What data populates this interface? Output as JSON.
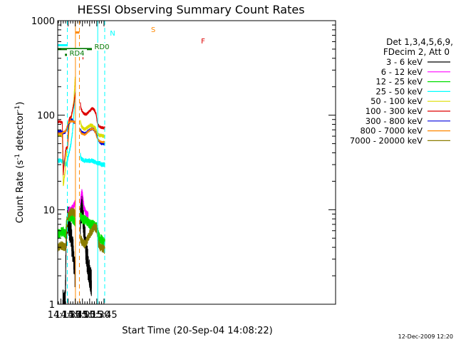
{
  "chart_data": {
    "type": "line",
    "title": "HESSI Observing Summary Count Rates",
    "xlabel": "Start Time (20-Sep-04 14:08:22)",
    "ylabel_main": "Count Rate (s",
    "ylabel_sup1": "-1",
    "ylabel_mid": " detector",
    "ylabel_sup2": "-1",
    "ylabel_end": ")",
    "y_scale": "log",
    "ylim": [
      1,
      1000
    ],
    "xlim_minutes": [
      848.4,
      1428.4
    ],
    "x_ticks": [
      {
        "label": "14:15",
        "min": 855
      },
      {
        "label": "14:30",
        "min": 870
      },
      {
        "label": "14:45",
        "min": 885
      },
      {
        "label": "15:00",
        "min": 900
      },
      {
        "label": "15:15",
        "min": 915
      },
      {
        "label": "15:30",
        "min": 930
      },
      {
        "label": "15:45",
        "min": 945
      }
    ],
    "y_ticks": [
      {
        "label": "1",
        "v": 1
      },
      {
        "label": "10",
        "v": 10
      },
      {
        "label": "100",
        "v": 100
      },
      {
        "label": "1000",
        "v": 1000
      }
    ],
    "legend_header": [
      "Det 1,3,4,5,6,9,",
      "FDecim 2, Att 0"
    ],
    "legend": [
      {
        "label": "3 - 6 keV",
        "color": "#000000"
      },
      {
        "label": "6 - 12 keV",
        "color": "#ff00ff"
      },
      {
        "label": "12 - 25 keV",
        "color": "#00e000"
      },
      {
        "label": "25 - 50 keV",
        "color": "#00ffff"
      },
      {
        "label": "50 - 100 keV",
        "color": "#dddd00"
      },
      {
        "label": "100 - 300 keV",
        "color": "#dd0000"
      },
      {
        "label": "300 - 800 keV",
        "color": "#0000dd"
      },
      {
        "label": "800 - 7000 keV",
        "color": "#ff8800"
      },
      {
        "label": "7000 - 20000 keV",
        "color": "#8b7d00"
      }
    ],
    "flag_labels": {
      "N": "N",
      "RD0": "RD0",
      "RD4": "RD4",
      "S": "S",
      "F": "F"
    },
    "flags": [
      {
        "name": "N",
        "color": "#00ffff",
        "y": 550,
        "ranges": [
          [
            848.4,
            868.2
          ],
          [
            931.8,
            946.8
          ]
        ]
      },
      {
        "name": "S",
        "color": "#ff8800",
        "y": 750,
        "ranges": [
          [
            885.6,
            893.7
          ]
        ]
      },
      {
        "name": "F",
        "color": "#dd0000",
        "y": 400,
        "ranges": [
          [
            900.2,
            902.0
          ]
        ]
      },
      {
        "name": "RD0",
        "color": "#007700",
        "y": 500,
        "ranges": [
          [
            848.4,
            946.8
          ]
        ]
      },
      {
        "name": "RD4",
        "color": "#007700",
        "y": 435,
        "ranges": [
          [
            863.5,
            868.5
          ],
          [
            905.6,
            905.9
          ]
        ]
      }
    ],
    "vlines": [
      {
        "min": 868.5,
        "color": "#00ffff",
        "style": "dashed"
      },
      {
        "min": 885.4,
        "color": "#ff8800",
        "style": "solid"
      },
      {
        "min": 893.7,
        "color": "#ff8800",
        "style": "dashed"
      },
      {
        "min": 931.9,
        "color": "#00ffff",
        "style": "solid"
      },
      {
        "min": 946.5,
        "color": "#00ffff",
        "style": "dashed"
      }
    ],
    "series": [
      {
        "name": "3 - 6 keV",
        "color": "#000000",
        "noise": 0.35,
        "segments": [
          {
            "x": [
              859.0,
              864.0,
              866.0,
              869.0,
              872.0,
              876.0,
              879.0,
              882.0,
              884.8
            ],
            "y": [
              1,
              1,
              5.5,
              8.0,
              7.0,
              5.5,
              4.0,
              3.0,
              2.0
            ]
          },
          {
            "x": [
              895.5,
              897.0,
              899.0,
              902.0,
              905.0,
              908.0,
              912.0,
              916.0,
              919.0
            ],
            "y": [
              7.5,
              9.0,
              11.0,
              7.5,
              5.0,
              3.5,
              2.5,
              2.0,
              1.6
            ]
          }
        ]
      },
      {
        "name": "6 - 12 keV",
        "color": "#ff00ff",
        "noise": 0.08,
        "segments": [
          {
            "x": [
              870.0,
              873.0,
              876.0,
              879.0,
              882.0,
              884.8
            ],
            "y": [
              9.5,
              10.0,
              9.8,
              10.5,
              11.0,
              12.0
            ]
          },
          {
            "x": [
              895.5,
              897.0,
              899.0,
              901.0,
              903.0,
              906.0,
              909.0,
              912.0
            ],
            "y": [
              12.0,
              13.5,
              16.0,
              13.0,
              10.5,
              9.5,
              9.0,
              8.8
            ]
          }
        ]
      },
      {
        "name": "12 - 25 keV",
        "color": "#00e000",
        "noise": 0.12,
        "segments": [
          {
            "x": [
              848.4,
              855.0,
              860.0,
              865.0,
              867.0,
              870.0,
              875.0,
              880.0,
              884.8
            ],
            "y": [
              5.5,
              5.8,
              6.0,
              5.5,
              7.5,
              8.5,
              8.5,
              8.0,
              7.5
            ]
          },
          {
            "x": [
              895.5,
              900.0,
              905.0,
              910.0,
              915.0,
              920.0,
              925.0,
              930.0,
              933.0,
              935.0,
              940.0,
              946.8
            ],
            "y": [
              8.5,
              8.0,
              7.8,
              7.5,
              7.0,
              7.0,
              6.8,
              6.5,
              5.5,
              5.0,
              4.8,
              4.5
            ]
          }
        ]
      },
      {
        "name": "25 - 50 keV",
        "color": "#00ffff",
        "noise": 0.05,
        "segments": [
          {
            "x": [
              848.4,
              855.0,
              860.0,
              865.0,
              867.5,
              870.0,
              873.0,
              876.0,
              879.0,
              882.0,
              884.8
            ],
            "y": [
              33,
              33,
              32,
              30,
              31,
              36,
              42,
              50,
              65,
              100,
              180
            ]
          },
          {
            "x": [
              895.5,
              897.0,
              900.0,
              904.0,
              908.0,
              914.0,
              920.0,
              926.0,
              932.0,
              936.0,
              940.0,
              946.8
            ],
            "y": [
              38,
              35,
              34,
              33,
              33,
              33,
              33,
              32,
              31,
              31,
              30,
              30
            ]
          }
        ]
      },
      {
        "name": "50 - 100 keV",
        "color": "#dddd00",
        "noise": 0.04,
        "segments": [
          {
            "x": [
              848.4,
              855.0,
              858.0,
              860.0,
              864.0,
              866.0,
              867.0,
              869.0,
              871.0,
              873.0,
              877.0,
              882.0,
              884.8
            ],
            "y": [
              62,
              62,
              60,
              18,
              26,
              40,
              38,
              45,
              60,
              85,
              95,
              140,
              250
            ]
          },
          {
            "x": [
              895.5,
              898.0,
              902.0,
              905.0,
              908.0,
              912.0,
              916.0,
              920.0,
              924.0,
              927.0,
              929.0,
              931.0,
              933.0,
              936.0,
              940.0,
              946.8
            ],
            "y": [
              85,
              76,
              72,
              71,
              73,
              75,
              78,
              78,
              75,
              73,
              68,
              63,
              62,
              61,
              61,
              60
            ]
          }
        ]
      },
      {
        "name": "100 - 300 keV",
        "color": "#dd0000",
        "noise": 0.03,
        "segments": [
          {
            "x": [
              848.4,
              855.0,
              858.0,
              860.0,
              864.0,
              866.0,
              867.0,
              869.0,
              871.0,
              873.0,
              876.0,
              879.0,
              882.0,
              884.8
            ],
            "y": [
              85,
              85,
              83,
              24,
              40,
              45,
              44,
              48,
              85,
              92,
              95,
              110,
              130,
              170
            ]
          },
          {
            "x": [
              895.5,
              897.0,
              900.0,
              904.0,
              908.0,
              912.0,
              916.0,
              920.0,
              924.0,
              928.0,
              930.0,
              932.0,
              936.0,
              940.0,
              946.8
            ],
            "y": [
              135,
              118,
              108,
              103,
              102,
              107,
              112,
              118,
              115,
              105,
              90,
              80,
              75,
              74,
              73
            ]
          }
        ]
      },
      {
        "name": "300 - 800 keV",
        "color": "#0000dd",
        "noise": 0.03,
        "segments": [
          {
            "x": [
              848.4,
              855.0,
              860.0,
              864.0,
              866.0,
              869.0,
              871.0,
              874.0,
              878.0,
              882.0,
              884.8
            ],
            "y": [
              67,
              67,
              65,
              66,
              70,
              72,
              80,
              85,
              90,
              85,
              83
            ]
          },
          {
            "x": [
              895.5,
              898.0,
              902.0,
              905.0,
              908.0,
              912.0,
              916.0,
              920.0,
              924.0,
              928.0,
              930.0,
              933.0,
              936.0,
              940.0,
              946.8
            ],
            "y": [
              70,
              66,
              65,
              64,
              65,
              68,
              70,
              72,
              70,
              65,
              60,
              55,
              52,
              50,
              50
            ]
          }
        ]
      },
      {
        "name": "800 - 7000 keV",
        "color": "#ff8800",
        "noise": 0.02,
        "segments": [
          {
            "x": [
              848.4,
              855.0,
              860.0,
              865.0,
              870.0,
              875.0,
              880.0,
              884.8
            ],
            "y": [
              64,
              64,
              66,
              68,
              82,
              86,
              86,
              84
            ]
          },
          {
            "x": [
              895.5,
              898.0,
              902.0,
              905.0,
              908.0,
              912.0,
              916.0,
              920.0,
              924.0,
              928.0,
              930.0,
              933.0,
              936.0,
              940.0,
              946.8
            ],
            "y": [
              68,
              64,
              63,
              62,
              64,
              67,
              70,
              72,
              70,
              64,
              58,
              55,
              53,
              52,
              52
            ]
          }
        ]
      },
      {
        "name": "7000 - 20000 keV",
        "color": "#8b7d00",
        "noise": 0.1,
        "segments": [
          {
            "x": [
              848.4,
              855.0,
              860.0,
              865.0,
              867.5,
              870.0,
              875.0,
              880.0,
              884.8
            ],
            "y": [
              4.0,
              4.2,
              4.1,
              4.0,
              7.0,
              8.5,
              9.5,
              9.5,
              9.0
            ]
          },
          {
            "x": [
              895.5,
              900.0,
              905.0,
              910.0,
              915.0,
              920.0,
              925.0,
              930.0,
              933.0,
              936.0,
              940.0,
              946.8
            ],
            "y": [
              5.0,
              4.5,
              4.3,
              4.8,
              5.5,
              6.0,
              6.5,
              6.3,
              4.5,
              4.0,
              3.9,
              3.8
            ]
          }
        ]
      }
    ]
  },
  "footer_date": "12-Dec-2009 12:20"
}
